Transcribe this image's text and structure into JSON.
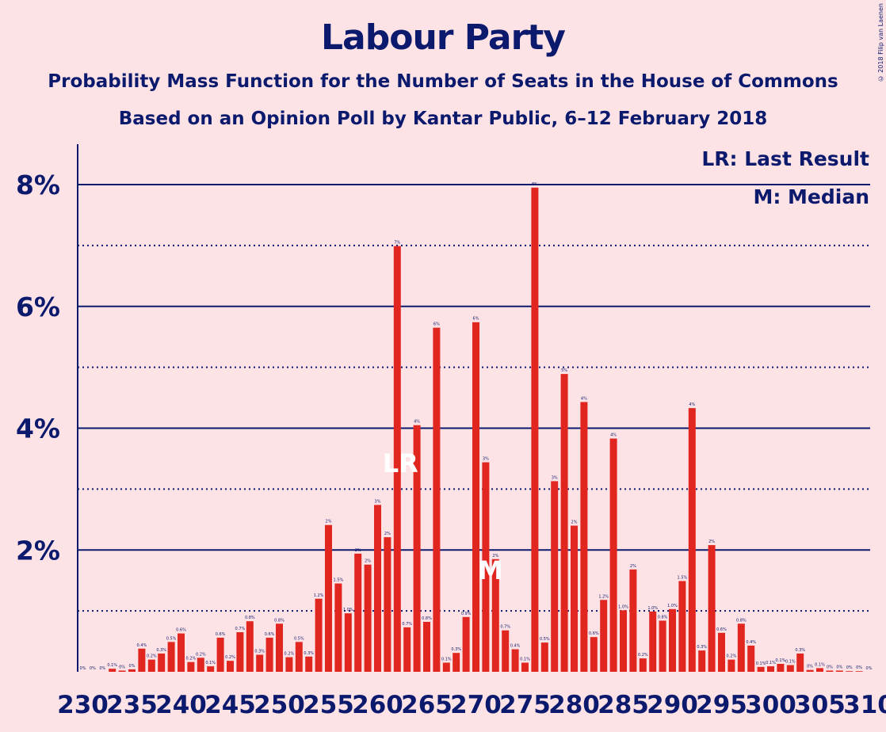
{
  "title": "Labour Party",
  "subtitle1": "Probability Mass Function for the Number of Seats in the House of Commons",
  "subtitle2": "Based on an Opinion Poll by Kantar Public, 6–12 February 2018",
  "copyright": "© 2018 Filip van Laenen",
  "legend": {
    "lr": "LR: Last Result",
    "m": "M: Median"
  },
  "colors": {
    "bar": "#e0261f",
    "axis": "#0c1a6e",
    "background": "#fde3e6",
    "marker": "#ffffff"
  },
  "chart_data": {
    "type": "bar",
    "x_start": 230,
    "x_end": 310,
    "xtick_labels": [
      "230",
      "235",
      "240",
      "245",
      "250",
      "255",
      "260",
      "265",
      "270",
      "275",
      "280",
      "285",
      "290",
      "295",
      "300",
      "305",
      "310"
    ],
    "ytick_labels": [
      "2%",
      "4%",
      "6%",
      "8%"
    ],
    "ylim": [
      0,
      8.6
    ],
    "solid_gridlines": [
      2,
      4,
      6,
      8
    ],
    "dotted_gridlines": [
      1,
      3,
      5,
      7
    ],
    "values": [
      0,
      0,
      0,
      0.05,
      0.02,
      0.04,
      0.38,
      0.2,
      0.3,
      0.49,
      0.63,
      0.16,
      0.23,
      0.09,
      0.56,
      0.18,
      0.65,
      0.83,
      0.28,
      0.56,
      0.79,
      0.24,
      0.49,
      0.25,
      1.2,
      2.41,
      1.45,
      0.96,
      1.94,
      1.76,
      2.74,
      2.21,
      6.99,
      0.73,
      4.05,
      0.82,
      5.65,
      0.15,
      0.31,
      0.9,
      5.74,
      3.44,
      1.85,
      0.68,
      0.37,
      0.15,
      7.95,
      0.48,
      3.13,
      4.89,
      2.4,
      4.43,
      0.57,
      1.18,
      3.83,
      1.01,
      1.68,
      0.22,
      0.99,
      0.84,
      1.03,
      1.49,
      4.33,
      0.35,
      2.08,
      0.64,
      0.2,
      0.79,
      0.43,
      0.08,
      0.09,
      0.13,
      0.11,
      0.3,
      0.03,
      0.06,
      0.02,
      0.02,
      0.01,
      0.01,
      0
    ],
    "bar_labels": [
      "0%",
      "0%",
      "0%",
      "0.1%",
      "0%",
      "0%",
      "0.4%",
      "0.2%",
      "0.3%",
      "0.5%",
      "0.6%",
      "0.2%",
      "0.2%",
      "0.1%",
      "0.6%",
      "0.2%",
      "0.7%",
      "0.8%",
      "0.3%",
      "0.6%",
      "0.8%",
      "0.2%",
      "0.5%",
      "0.3%",
      "1.2%",
      "2%",
      "1.5%",
      "1.0%",
      "2%",
      "2%",
      "3%",
      "2%",
      "7%",
      "0.7%",
      "4%",
      "0.8%",
      "6%",
      "0.1%",
      "0.3%",
      "0.9%",
      "6%",
      "3%",
      "2%",
      "0.7%",
      "0.4%",
      "0.1%",
      "8%",
      "0.5%",
      "3%",
      "5%",
      "2%",
      "4%",
      "0.6%",
      "1.2%",
      "4%",
      "1.0%",
      "2%",
      "0.2%",
      "1.0%",
      "0.8%",
      "1.0%",
      "1.5%",
      "4%",
      "0.3%",
      "2%",
      "0.6%",
      "0.2%",
      "0.8%",
      "0.4%",
      "0.1%",
      "0.1%",
      "0.1%",
      "0.1%",
      "0.3%",
      "0%",
      "0.1%",
      "0%",
      "0%",
      "0%",
      "0%",
      "0%"
    ],
    "last_result": {
      "x": 262,
      "label": "LR"
    },
    "median": {
      "x": 271,
      "label": "M"
    }
  }
}
